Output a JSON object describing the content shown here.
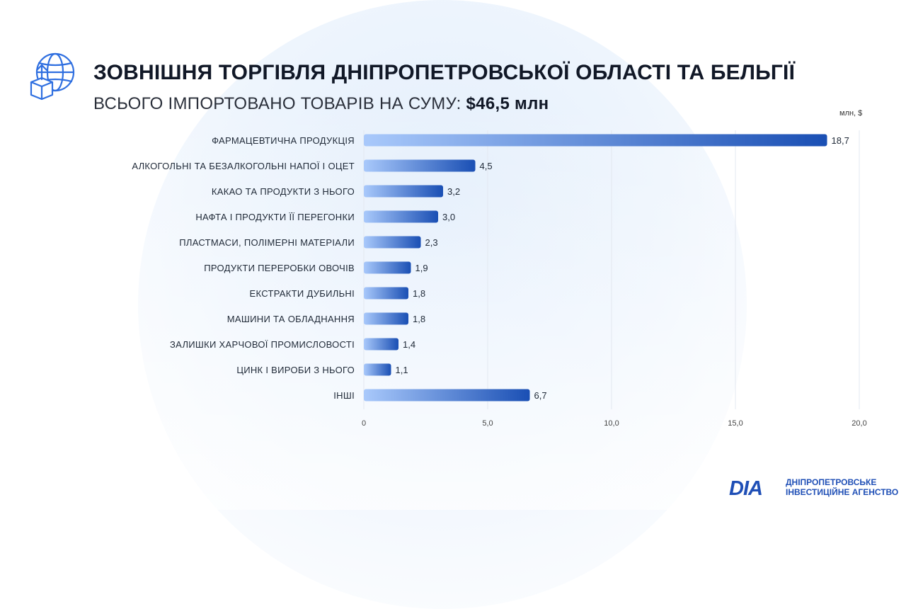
{
  "header": {
    "title": "ЗОВНІШНЯ ТОРГІВЛЯ ДНІПРОПЕТРОВСЬКОЇ ОБЛАСТІ ТА БЕЛЬГІЇ",
    "subtitle_prefix": "ВСЬОГО ІМПОРТОВАНО ТОВАРІВ НА СУМУ: ",
    "subtitle_value": "$46,5 млн"
  },
  "chart_data": {
    "type": "bar",
    "orientation": "horizontal",
    "unit_label": "млн, $",
    "categories": [
      "ФАРМАЦЕВТИЧНА ПРОДУКЦІЯ",
      "АЛКОГОЛЬНІ ТА БЕЗАЛКОГОЛЬНІ НАПОЇ І ОЦЕТ",
      "КАКАО ТА ПРОДУКТИ З НЬОГО",
      "НАФТА І ПРОДУКТИ ЇЇ ПЕРЕГОНКИ",
      "ПЛАСТМАСИ, ПОЛІМЕРНІ МАТЕРІАЛИ",
      "ПРОДУКТИ ПЕРЕРОБКИ ОВОЧІВ",
      "ЕКСТРАКТИ ДУБИЛЬНІ",
      "МАШИНИ ТА ОБЛАДНАННЯ",
      "ЗАЛИШКИ ХАРЧОВОЇ ПРОМИСЛОВОСТІ",
      "ЦИНК І ВИРОБИ З НЬОГО",
      "ІНШІ"
    ],
    "values": [
      18.7,
      4.5,
      3.2,
      3.0,
      2.3,
      1.9,
      1.8,
      1.8,
      1.4,
      1.1,
      6.7
    ],
    "value_labels": [
      "18,7",
      "4,5",
      "3,2",
      "3,0",
      "2,3",
      "1,9",
      "1,8",
      "1,8",
      "1,4",
      "1,1",
      "6,7"
    ],
    "xlim": [
      0,
      20
    ],
    "x_ticks": [
      0,
      5,
      10,
      15,
      20
    ],
    "x_tick_labels": [
      "0",
      "5,0",
      "10,0",
      "15,0",
      "20,0"
    ],
    "grid": true,
    "colors": {
      "bar_start": "#a9c9fb",
      "bar_end": "#1a4fb4",
      "grid": "#e3e8f0"
    }
  },
  "logo": {
    "mark": "DIA",
    "line1": "ДНІПРОПЕТРОВСЬКЕ",
    "line2": "ІНВЕСТИЦІЙНЕ АГЕНСТВО"
  },
  "icons": {
    "header_icon": "globe-box-upload-icon"
  }
}
